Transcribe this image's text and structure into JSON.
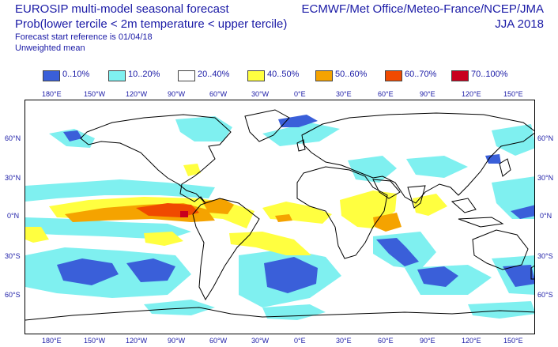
{
  "header": {
    "title_left": "EUROSIP multi-model seasonal forecast",
    "subtitle": "Prob(lower tercile < 2m temperature < upper tercile)",
    "forecast_ref": "Forecast start reference is 01/04/18",
    "weighting": "Unweighted mean",
    "title_right": "ECMWF/Met Office/Meteo-France/NCEP/JMA",
    "season": "JJA 2018"
  },
  "legend": [
    {
      "label": "0..10%",
      "color": "#3a5fd9"
    },
    {
      "label": "10..20%",
      "color": "#7ff0f0"
    },
    {
      "label": "20..40%",
      "color": "#ffffff"
    },
    {
      "label": "40..50%",
      "color": "#ffff40"
    },
    {
      "label": "50..60%",
      "color": "#f5a300"
    },
    {
      "label": "60..70%",
      "color": "#f04a00"
    },
    {
      "label": "70..100%",
      "color": "#c8001e"
    }
  ],
  "axes": {
    "lon_labels": [
      "180°E",
      "150°W",
      "120°W",
      "90°W",
      "60°W",
      "30°W",
      "0°E",
      "30°E",
      "60°E",
      "90°E",
      "120°E",
      "150°E"
    ],
    "lat_labels_left": [
      "60°N",
      "30°N",
      "0°N",
      "30°S",
      "60°S"
    ],
    "lat_labels_right": [
      "60°N",
      "30°N",
      "0°N",
      "30°S",
      "60°S"
    ]
  },
  "map": {
    "projection": "equirectangular",
    "coastline_color": "#000000"
  }
}
